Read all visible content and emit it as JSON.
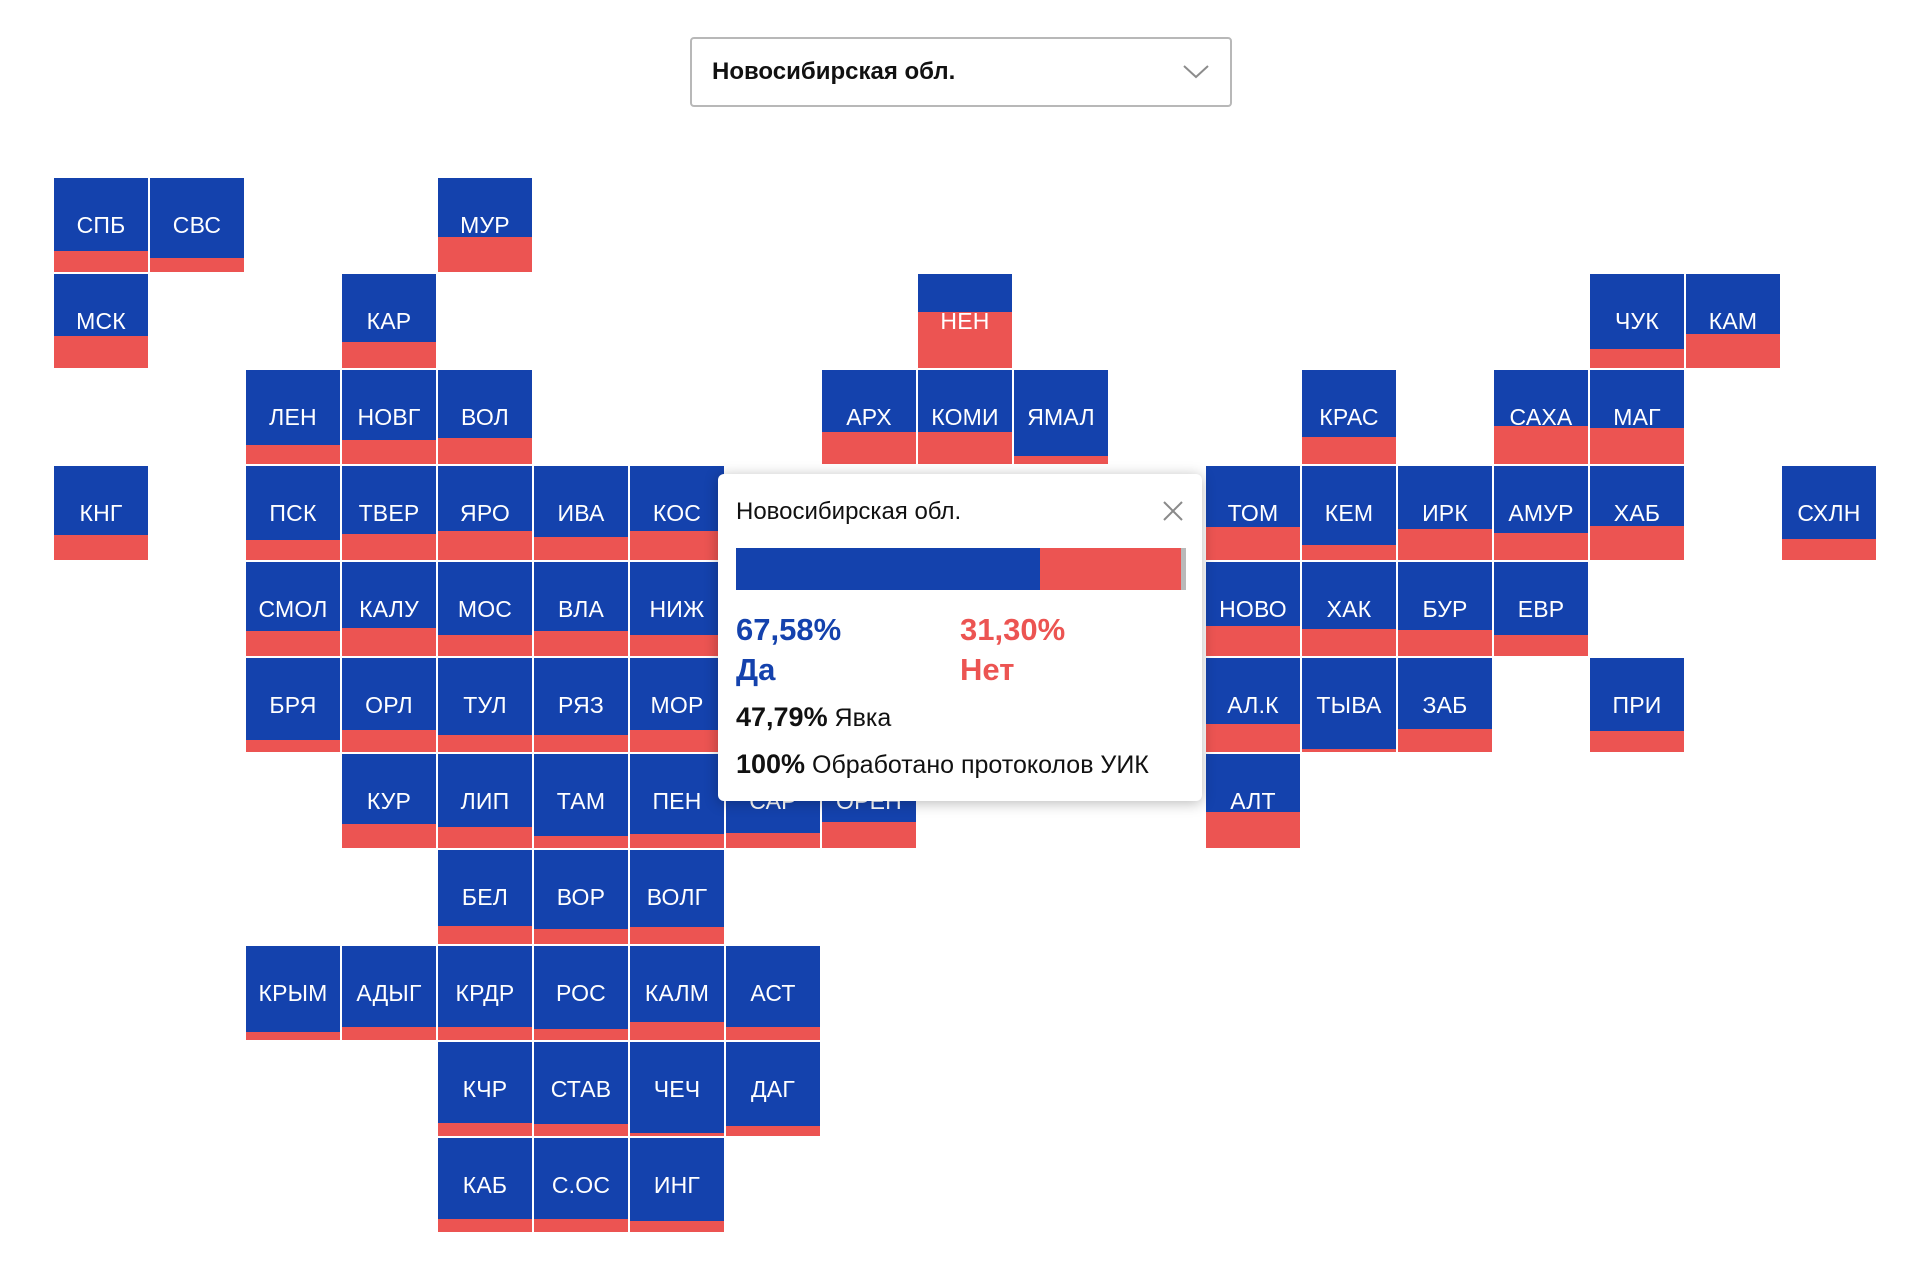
{
  "colors": {
    "yes": "#1442ad",
    "no": "#ec5452"
  },
  "region_select": {
    "value": "Новосибирская обл.",
    "icon": "chevron-down-icon"
  },
  "regions": [
    {
      "code": "СПБ",
      "col": 0,
      "row": 0,
      "yes": 0.78
    },
    {
      "code": "СВС",
      "col": 1,
      "row": 0,
      "yes": 0.85
    },
    {
      "code": "МУР",
      "col": 4,
      "row": 0,
      "yes": 0.63
    },
    {
      "code": "МСК",
      "col": 0,
      "row": 1,
      "yes": 0.66
    },
    {
      "code": "КАР",
      "col": 3,
      "row": 1,
      "yes": 0.72
    },
    {
      "code": "НЕН",
      "col": 9,
      "row": 1,
      "yes": 0.4
    },
    {
      "code": "ЧУК",
      "col": 16,
      "row": 1,
      "yes": 0.8
    },
    {
      "code": "КАМ",
      "col": 17,
      "row": 1,
      "yes": 0.64
    },
    {
      "code": "ЛЕН",
      "col": 2,
      "row": 2,
      "yes": 0.8
    },
    {
      "code": "НОВГ",
      "col": 3,
      "row": 2,
      "yes": 0.74
    },
    {
      "code": "ВОЛ",
      "col": 4,
      "row": 2,
      "yes": 0.72
    },
    {
      "code": "АРХ",
      "col": 8,
      "row": 2,
      "yes": 0.66
    },
    {
      "code": "КОМИ",
      "col": 9,
      "row": 2,
      "yes": 0.66
    },
    {
      "code": "ЯМАЛ",
      "col": 10,
      "row": 2,
      "yes": 0.91
    },
    {
      "code": "КРАС",
      "col": 13,
      "row": 2,
      "yes": 0.71
    },
    {
      "code": "САХА",
      "col": 15,
      "row": 2,
      "yes": 0.6
    },
    {
      "code": "МАГ",
      "col": 16,
      "row": 2,
      "yes": 0.62
    },
    {
      "code": "КНГ",
      "col": 0,
      "row": 3,
      "yes": 0.73
    },
    {
      "code": "ПСК",
      "col": 2,
      "row": 3,
      "yes": 0.79
    },
    {
      "code": "ТВЕР",
      "col": 3,
      "row": 3,
      "yes": 0.72
    },
    {
      "code": "ЯРО",
      "col": 4,
      "row": 3,
      "yes": 0.69
    },
    {
      "code": "ИВА",
      "col": 5,
      "row": 3,
      "yes": 0.76
    },
    {
      "code": "КОС",
      "col": 6,
      "row": 3,
      "yes": 0.69
    },
    {
      "code": "ТОМ",
      "col": 12,
      "row": 3,
      "yes": 0.65
    },
    {
      "code": "КЕМ",
      "col": 13,
      "row": 3,
      "yes": 0.84
    },
    {
      "code": "ИРК",
      "col": 14,
      "row": 3,
      "yes": 0.67
    },
    {
      "code": "АМУР",
      "col": 15,
      "row": 3,
      "yes": 0.71
    },
    {
      "code": "ХАБ",
      "col": 16,
      "row": 3,
      "yes": 0.64
    },
    {
      "code": "СХЛН",
      "col": 18,
      "row": 3,
      "yes": 0.78
    },
    {
      "code": "СМОЛ",
      "col": 2,
      "row": 4,
      "yes": 0.73
    },
    {
      "code": "КАЛУ",
      "col": 3,
      "row": 4,
      "yes": 0.7
    },
    {
      "code": "МОС",
      "col": 4,
      "row": 4,
      "yes": 0.78
    },
    {
      "code": "ВЛА",
      "col": 5,
      "row": 4,
      "yes": 0.73
    },
    {
      "code": "НИЖ",
      "col": 6,
      "row": 4,
      "yes": 0.78
    },
    {
      "code": "НОВО",
      "col": 12,
      "row": 4,
      "yes": 0.68
    },
    {
      "code": "ХАК",
      "col": 13,
      "row": 4,
      "yes": 0.71
    },
    {
      "code": "БУР",
      "col": 14,
      "row": 4,
      "yes": 0.72
    },
    {
      "code": "ЕВР",
      "col": 15,
      "row": 4,
      "yes": 0.78
    },
    {
      "code": "БРЯ",
      "col": 2,
      "row": 5,
      "yes": 0.87
    },
    {
      "code": "ОРЛ",
      "col": 3,
      "row": 5,
      "yes": 0.77
    },
    {
      "code": "ТУЛ",
      "col": 4,
      "row": 5,
      "yes": 0.82
    },
    {
      "code": "РЯЗ",
      "col": 5,
      "row": 5,
      "yes": 0.82
    },
    {
      "code": "МОР",
      "col": 6,
      "row": 5,
      "yes": 0.77
    },
    {
      "code": "АЛ.К",
      "col": 12,
      "row": 5,
      "yes": 0.7
    },
    {
      "code": "ТЫВА",
      "col": 13,
      "row": 5,
      "yes": 0.97
    },
    {
      "code": "ЗАБ",
      "col": 14,
      "row": 5,
      "yes": 0.76
    },
    {
      "code": "ПРИ",
      "col": 16,
      "row": 5,
      "yes": 0.78
    },
    {
      "code": "КУР",
      "col": 3,
      "row": 6,
      "yes": 0.74
    },
    {
      "code": "ЛИП",
      "col": 4,
      "row": 6,
      "yes": 0.78
    },
    {
      "code": "ТАМ",
      "col": 5,
      "row": 6,
      "yes": 0.87
    },
    {
      "code": "ПЕН",
      "col": 6,
      "row": 6,
      "yes": 0.85
    },
    {
      "code": "САР",
      "col": 7,
      "row": 6,
      "yes": 0.84
    },
    {
      "code": "ОРЕН",
      "col": 8,
      "row": 6,
      "yes": 0.72
    },
    {
      "code": "АЛТ",
      "col": 12,
      "row": 6,
      "yes": 0.62
    },
    {
      "code": "БЕЛ",
      "col": 4,
      "row": 7,
      "yes": 0.81
    },
    {
      "code": "ВОР",
      "col": 5,
      "row": 7,
      "yes": 0.84
    },
    {
      "code": "ВОЛГ",
      "col": 6,
      "row": 7,
      "yes": 0.82
    },
    {
      "code": "КРЫМ",
      "col": 2,
      "row": 8,
      "yes": 0.91
    },
    {
      "code": "АДЫГ",
      "col": 3,
      "row": 8,
      "yes": 0.86
    },
    {
      "code": "КРДР",
      "col": 4,
      "row": 8,
      "yes": 0.86
    },
    {
      "code": "РОС",
      "col": 5,
      "row": 8,
      "yes": 0.88
    },
    {
      "code": "КАЛМ",
      "col": 6,
      "row": 8,
      "yes": 0.81
    },
    {
      "code": "АСТ",
      "col": 7,
      "row": 8,
      "yes": 0.86
    },
    {
      "code": "КЧР",
      "col": 4,
      "row": 9,
      "yes": 0.86
    },
    {
      "code": "СТАВ",
      "col": 5,
      "row": 9,
      "yes": 0.87
    },
    {
      "code": "ЧЕЧ",
      "col": 6,
      "row": 9,
      "yes": 0.97
    },
    {
      "code": "ДАГ",
      "col": 7,
      "row": 9,
      "yes": 0.89
    },
    {
      "code": "КАБ",
      "col": 4,
      "row": 10,
      "yes": 0.86
    },
    {
      "code": "С.ОС",
      "col": 5,
      "row": 10,
      "yes": 0.86
    },
    {
      "code": "ИНГ",
      "col": 6,
      "row": 10,
      "yes": 0.88
    }
  ],
  "tooltip": {
    "region": "Новосибирская обл.",
    "close_icon": "close-icon",
    "yes_pct": "67,58%",
    "yes_label": "Да",
    "no_pct": "31,30%",
    "no_label": "Нет",
    "yes_share": 0.6758,
    "no_share": 0.313,
    "turnout_value": "47,79%",
    "turnout_label": "Явка",
    "processed_value": "100%",
    "processed_label": "Обработано протоколов УИК"
  }
}
